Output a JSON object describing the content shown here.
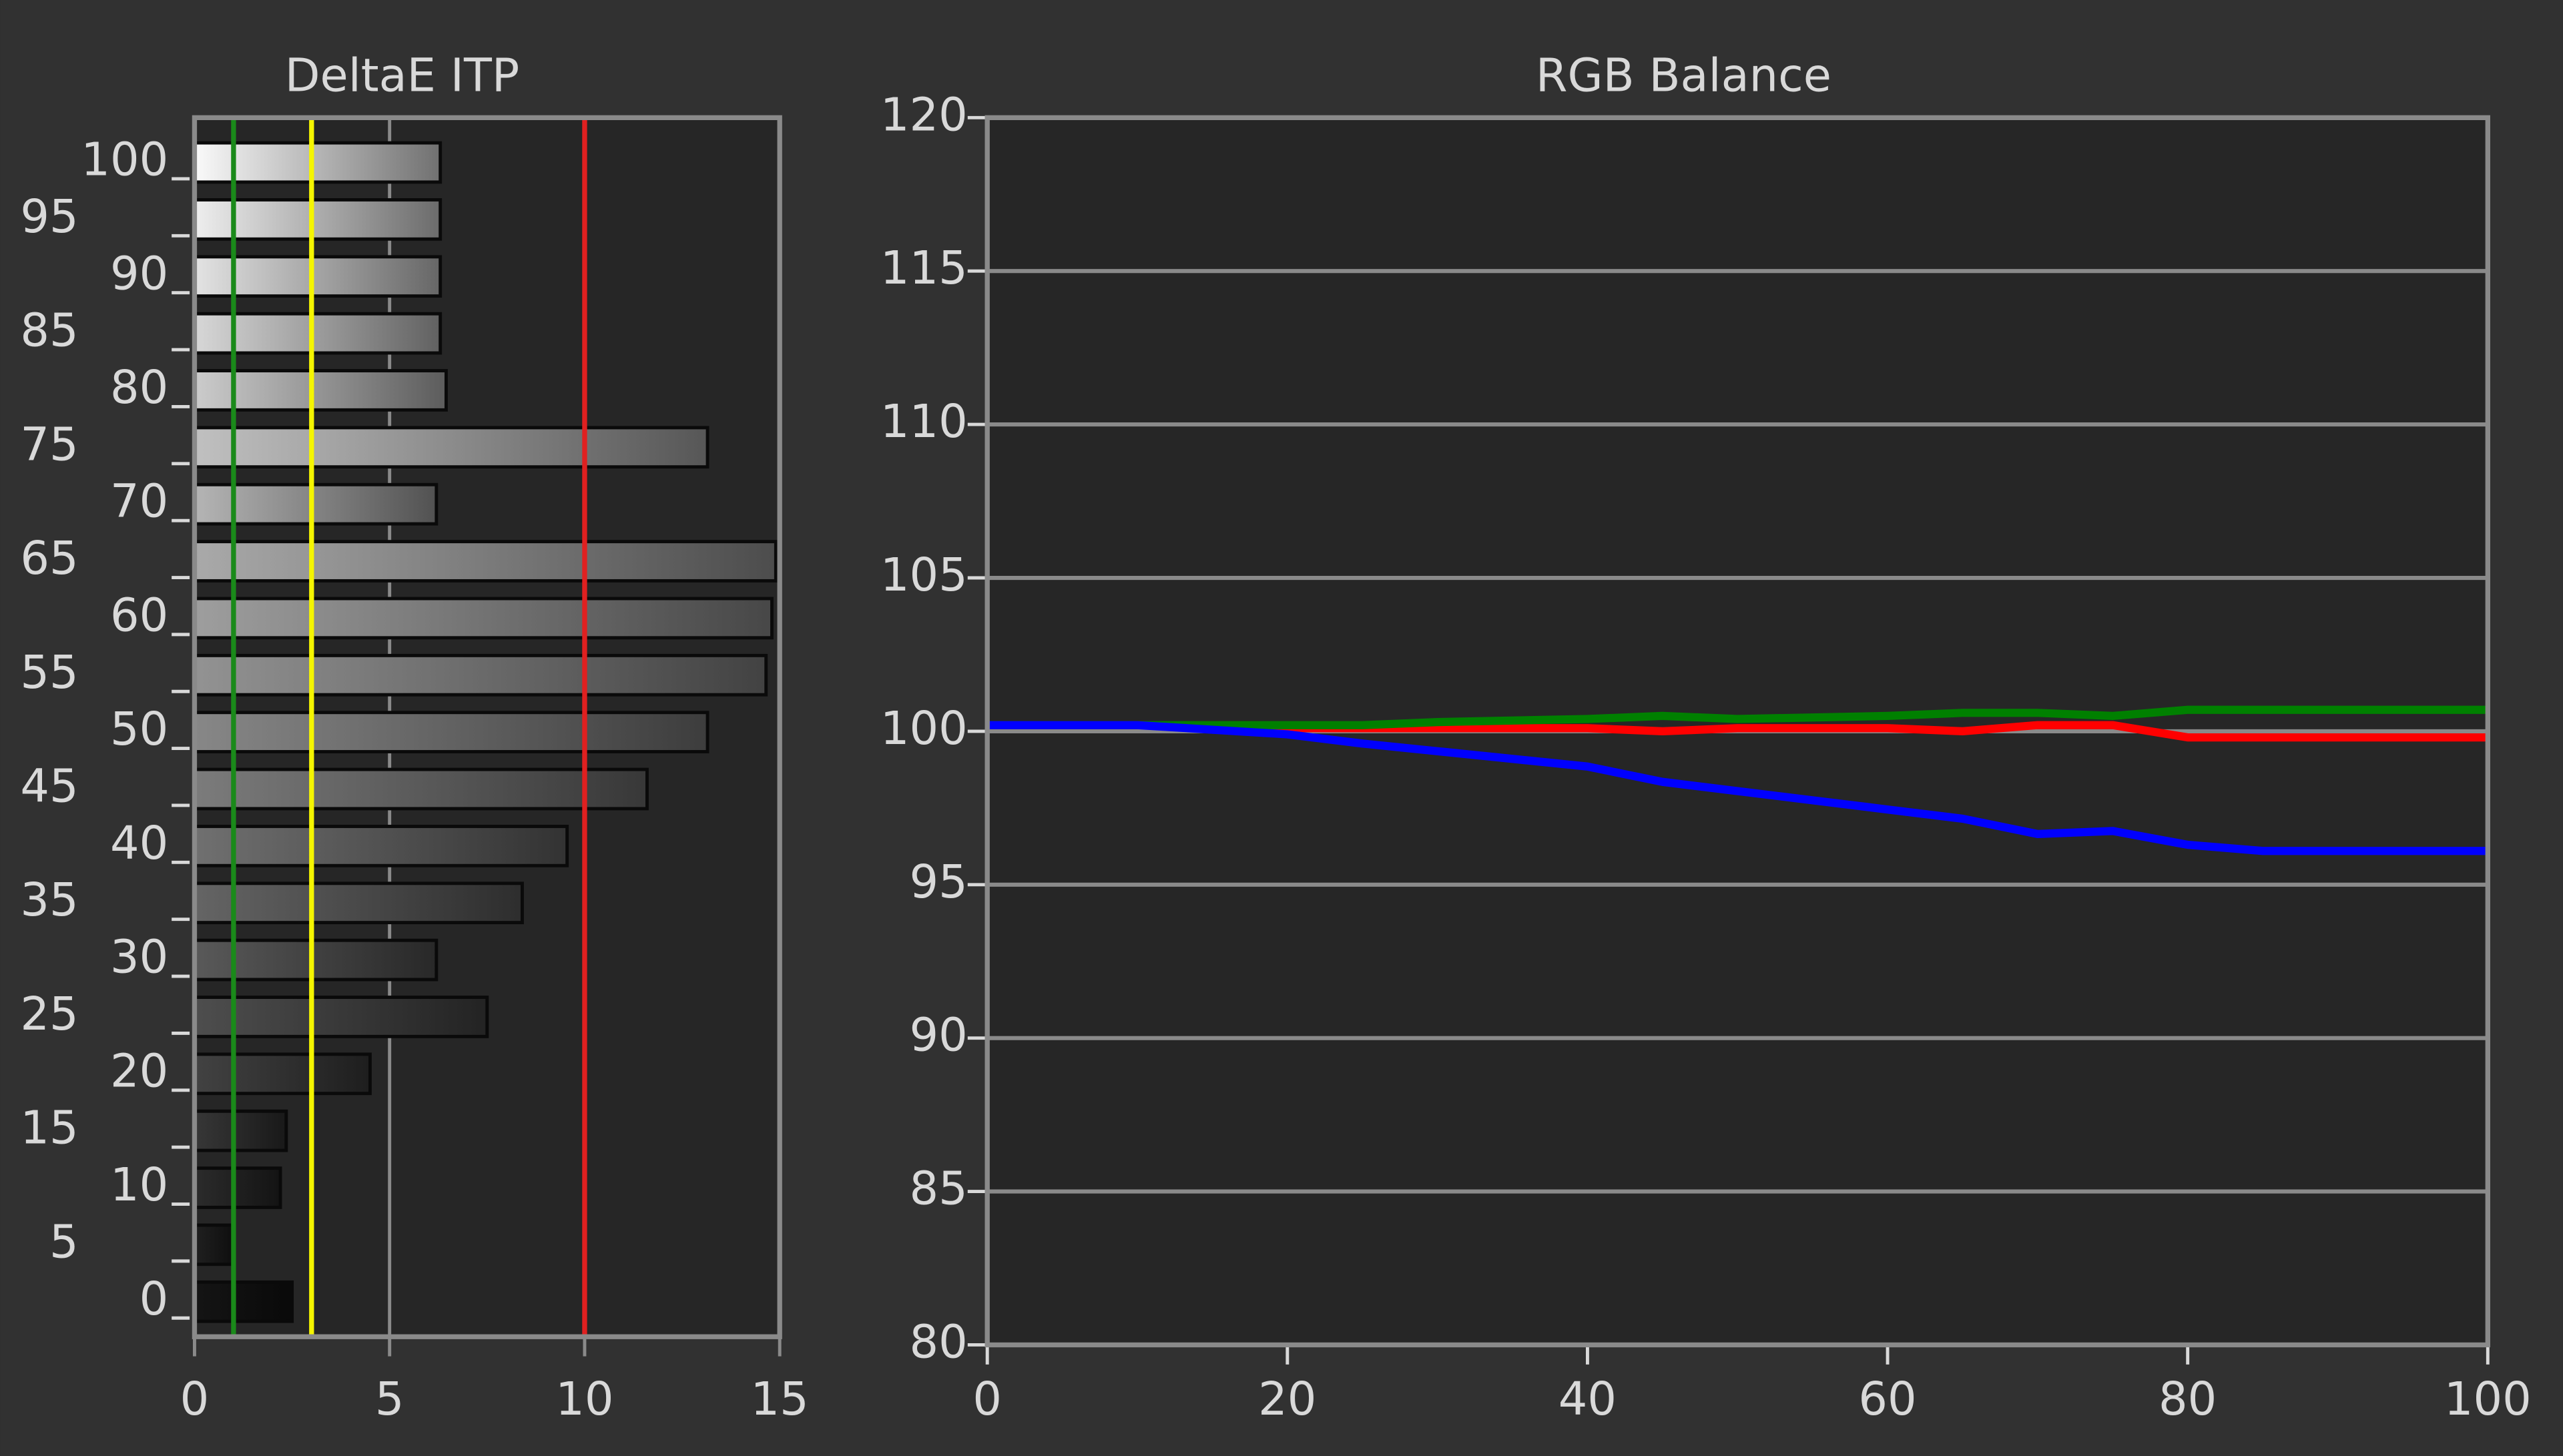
{
  "chart_data": [
    {
      "type": "hbar",
      "title": "DeltaE ITP",
      "categories": [
        100,
        95,
        90,
        85,
        80,
        75,
        70,
        65,
        60,
        55,
        50,
        45,
        40,
        35,
        30,
        25,
        20,
        15,
        10,
        5,
        0
      ],
      "values": [
        6.3,
        6.3,
        6.3,
        6.3,
        6.45,
        13.15,
        6.2,
        14.9,
        14.8,
        14.65,
        13.15,
        11.6,
        9.55,
        8.4,
        6.2,
        7.5,
        4.5,
        2.35,
        2.2,
        1.0,
        2.5
      ],
      "xlim": [
        0,
        15
      ],
      "xticks": [
        0,
        5,
        10,
        15
      ],
      "grid": true,
      "reference_lines": [
        {
          "value": 1,
          "color": "#1a8a1a"
        },
        {
          "value": 3,
          "color": "#f5f500"
        },
        {
          "value": 10,
          "color": "#e02020"
        }
      ]
    },
    {
      "type": "line",
      "title": "RGB Balance",
      "x": [
        0,
        10,
        20,
        25,
        30,
        40,
        45,
        50,
        60,
        65,
        70,
        75,
        80,
        85,
        90,
        100
      ],
      "series": [
        {
          "name": "Red",
          "color": "#ff0000",
          "values": [
            100.2,
            100.2,
            100.1,
            100.1,
            100.1,
            100.1,
            100.0,
            100.1,
            100.1,
            100.0,
            100.2,
            100.2,
            99.8,
            99.8,
            99.8,
            99.8
          ]
        },
        {
          "name": "Green",
          "color": "#008000",
          "values": [
            100.2,
            100.2,
            100.2,
            100.2,
            100.3,
            100.4,
            100.5,
            100.4,
            100.5,
            100.6,
            100.6,
            100.5,
            100.7,
            100.7,
            100.7,
            100.7
          ]
        },
        {
          "name": "Blue",
          "color": "#0000ff",
          "values": [
            100.2,
            100.2,
            99.9,
            99.6,
            99.35,
            98.85,
            98.35,
            98.05,
            97.45,
            97.15,
            96.65,
            96.75,
            96.3,
            96.1,
            96.1,
            96.1
          ]
        }
      ],
      "xlim": [
        0,
        100
      ],
      "xticks": [
        0,
        20,
        40,
        60,
        80,
        100
      ],
      "ylim": [
        80,
        120
      ],
      "yticks": [
        80,
        85,
        90,
        95,
        100,
        105,
        110,
        115,
        120
      ],
      "grid": true
    }
  ]
}
